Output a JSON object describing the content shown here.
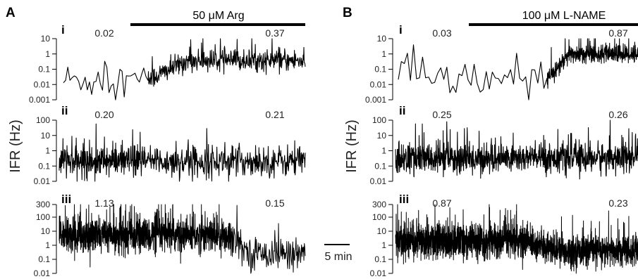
{
  "figure": {
    "scale_bar_label": "5 min",
    "colors": {
      "trace": "#000000",
      "axis": "#000000",
      "label": "#222222",
      "background": "#ffffff"
    }
  },
  "chart_data": [
    {
      "type": "line",
      "panel": "A",
      "ylabel": "IFR (Hz)",
      "drug_bar_label": "50 μM Arg",
      "y_scale": "log",
      "subplots": [
        {
          "label": "i",
          "ylim": [
            0.001,
            10
          ],
          "yticks": [
            "0.001",
            "0.01",
            "0.1",
            "1",
            "10"
          ],
          "annotations": {
            "before": "0.02",
            "after": "0.37"
          },
          "profile": {
            "baseline_before": 0.02,
            "baseline_after": 0.37,
            "spread_before": 0.6,
            "spread_after": 0.35,
            "onset_fraction": 0.35,
            "density_before": 40,
            "density_after": 450
          }
        },
        {
          "label": "ii",
          "ylim": [
            0.01,
            100
          ],
          "yticks": [
            "0.01",
            "0.1",
            "1",
            "10",
            "100"
          ],
          "annotations": {
            "before": "0.20",
            "after": "0.21"
          },
          "profile": {
            "baseline_before": 0.2,
            "baseline_after": 0.21,
            "spread_before": 0.5,
            "spread_after": 0.5,
            "onset_fraction": 0.35,
            "density_before": 300,
            "density_after": 380
          }
        },
        {
          "label": "iii",
          "ylim": [
            0.01,
            300
          ],
          "yticks": [
            "0.01",
            "0.1",
            "1",
            "10",
            "100",
            "300"
          ],
          "annotations": {
            "before": "1.13",
            "after": "0.15"
          },
          "profile": {
            "baseline_before": 3.0,
            "baseline_after": 0.2,
            "spread_before": 0.55,
            "spread_after": 0.5,
            "onset_fraction": 0.7,
            "density_before": 1400,
            "density_after": 160
          }
        }
      ]
    },
    {
      "type": "line",
      "panel": "B",
      "ylabel": "IFR (Hz)",
      "drug_bar_label": "100 μM L-NAME",
      "y_scale": "log",
      "subplots": [
        {
          "label": "i",
          "ylim": [
            0.001,
            10
          ],
          "yticks": [
            "0.001",
            "0.01",
            "0.1",
            "1",
            "10"
          ],
          "annotations": {
            "before": "0.03",
            "after": "0.87"
          },
          "profile": {
            "baseline_before": 0.02,
            "baseline_after": 1.0,
            "spread_before": 0.6,
            "spread_after": 0.3,
            "onset_fraction": 0.62,
            "density_before": 50,
            "density_after": 500
          }
        },
        {
          "label": "ii",
          "ylim": [
            0.01,
            100
          ],
          "yticks": [
            "0.01",
            "0.1",
            "1",
            "10",
            "100"
          ],
          "annotations": {
            "before": "0.25",
            "after": "0.26"
          },
          "profile": {
            "baseline_before": 0.3,
            "baseline_after": 0.35,
            "spread_before": 0.5,
            "spread_after": 0.5,
            "onset_fraction": 0.35,
            "density_before": 400,
            "density_after": 600
          }
        },
        {
          "label": "iii",
          "ylim": [
            0.01,
            300
          ],
          "yticks": [
            "0.01",
            "0.1",
            "1",
            "10",
            "100",
            "300"
          ],
          "annotations": {
            "before": "0.87",
            "after": "0.23"
          },
          "profile": {
            "baseline_before": 1.2,
            "baseline_after": 0.3,
            "spread_before": 0.55,
            "spread_after": 0.5,
            "onset_fraction": 0.55,
            "density_before": 1400,
            "density_after": 900
          }
        }
      ]
    }
  ]
}
